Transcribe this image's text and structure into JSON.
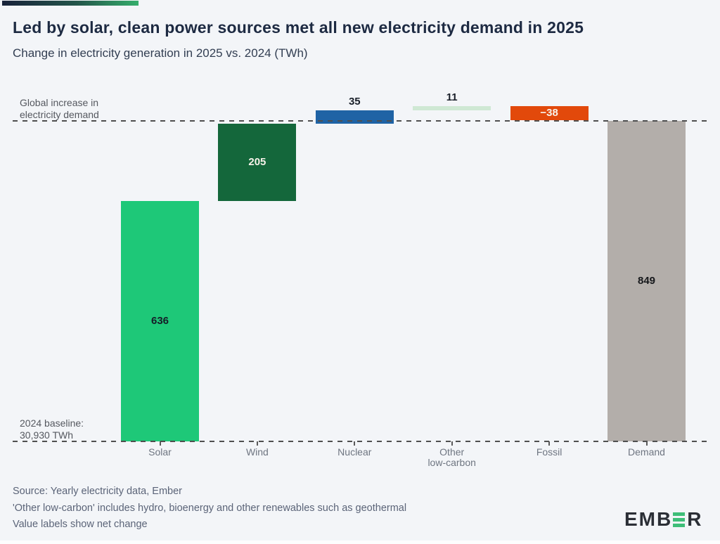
{
  "header": {
    "title": "Led by solar, clean power sources met all new electricity demand in 2025",
    "subtitle": "Change in electricity generation in 2025 vs. 2024 (TWh)"
  },
  "annotations": {
    "demand_line_label": "Global increase in\nelectricity demand",
    "baseline_label": "2024 baseline:\n30,930 TWh"
  },
  "chart_data": {
    "type": "bar",
    "subtype": "waterfall",
    "title": "Led by solar, clean power sources met all new electricity demand in 2025",
    "subtitle": "Change in electricity generation in 2025 vs. 2024 (TWh)",
    "unit": "TWh",
    "baseline_2024_twh": "30,930",
    "global_demand_increase_twh": 849,
    "categories": [
      "Solar",
      "Wind",
      "Nuclear",
      "Other low-carbon",
      "Fossil",
      "Demand"
    ],
    "values": [
      636,
      205,
      35,
      11,
      -38,
      849
    ],
    "ylim": [
      0,
      887
    ],
    "grid": false,
    "legend": "none",
    "bars": [
      {
        "label": "Solar",
        "axis_lines": "Solar",
        "value": 636,
        "display": "636",
        "kind": "delta",
        "color": "#1ec878",
        "label_color": "#151d28",
        "label_placement": "inside"
      },
      {
        "label": "Wind",
        "axis_lines": "Wind",
        "value": 205,
        "display": "205",
        "kind": "delta",
        "color": "#14673b",
        "label_color": "#f7f3ea",
        "label_placement": "inside"
      },
      {
        "label": "Nuclear",
        "axis_lines": "Nuclear",
        "value": 35,
        "display": "35",
        "kind": "delta",
        "color": "#1f63a5",
        "label_color": "#1a202a",
        "label_placement": "above"
      },
      {
        "label": "Other low-carbon",
        "axis_lines": "Other\nlow-carbon",
        "value": 11,
        "display": "11",
        "kind": "delta",
        "color": "#cfe8d4",
        "label_color": "#1a202a",
        "label_placement": "above"
      },
      {
        "label": "Fossil",
        "axis_lines": "Fossil",
        "value": -38,
        "display": "−38",
        "kind": "delta",
        "color": "#e2490b",
        "label_color": "#f7f3ea",
        "label_placement": "inside"
      },
      {
        "label": "Demand",
        "axis_lines": "Demand",
        "value": 849,
        "display": "849",
        "kind": "total",
        "color": "#b3aeaa",
        "label_color": "#17191c",
        "label_placement": "inside"
      }
    ],
    "dashed_lines": [
      {
        "name": "global-increase-in-electricity-demand",
        "value": 849
      },
      {
        "name": "2024-baseline",
        "value": 0
      }
    ]
  },
  "footer": {
    "lines": [
      "Source: Yearly electricity data, Ember",
      "'Other low-carbon' includes hydro, bioenergy and other renewables such as geothermal",
      "Value labels show net change"
    ]
  },
  "logo": {
    "prefix": "EMB",
    "suffix": "R",
    "accent_color": "#3ebe78"
  },
  "colors": {
    "background": "#f3f5f8",
    "title": "#1d2a42",
    "subtitle": "#323e52",
    "annotation": "#55585f",
    "axis_label": "#6e7581",
    "footer": "#5b6478",
    "dashed_line": "#4f4f4f"
  }
}
